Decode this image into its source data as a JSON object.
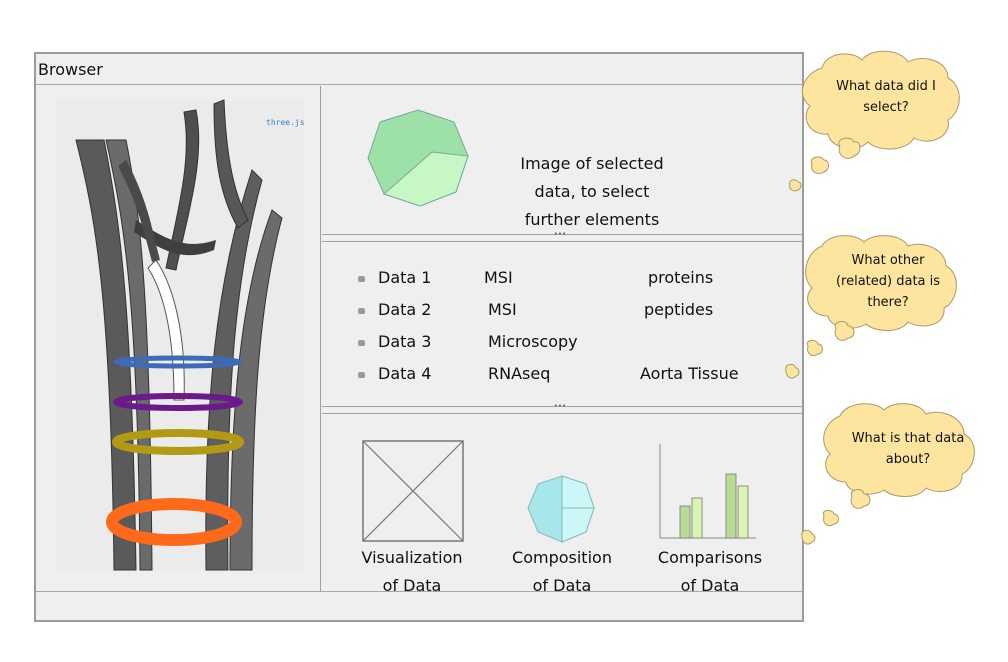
{
  "window": {
    "title": "Browser"
  },
  "viewer": {
    "library_label": "three.js"
  },
  "selection_panel": {
    "description_lines": [
      "Image of selected",
      "data, to select",
      "further elements"
    ]
  },
  "data_list": {
    "items": [
      {
        "name": "Data 1",
        "type": "MSI",
        "description": "proteins"
      },
      {
        "name": "Data 2",
        "type": "MSI",
        "description": "peptides"
      },
      {
        "name": "Data 3",
        "type": "Microscopy",
        "description": ""
      },
      {
        "name": "Data 4",
        "type": "RNAseq",
        "description": "Aorta Tissue"
      }
    ]
  },
  "views": {
    "visualization": [
      "Visualization",
      "of Data"
    ],
    "composition": [
      "Composition",
      "of Data"
    ],
    "comparisons": [
      "Comparisons",
      "of Data"
    ]
  },
  "bubbles": {
    "first": [
      "What data did I",
      "select?"
    ],
    "second": [
      "What other",
      "(related) data is",
      "there?"
    ],
    "third": [
      "What is that data",
      "about?"
    ]
  },
  "colors": {
    "pie_main": "#9de0a8",
    "pie_slice": "#c6f7c4",
    "composition_main": "#a7e6e9",
    "composition_light": "#cdf6f7",
    "bar_green": "#b8dc96",
    "bar_light": "#d9f5b0",
    "bubble_fill": "#fde5a0",
    "ring_blue": "#3e6bb8",
    "ring_purple": "#6a1a8a",
    "ring_yellow": "#b39a14",
    "ring_orange": "#ff6a1a"
  }
}
